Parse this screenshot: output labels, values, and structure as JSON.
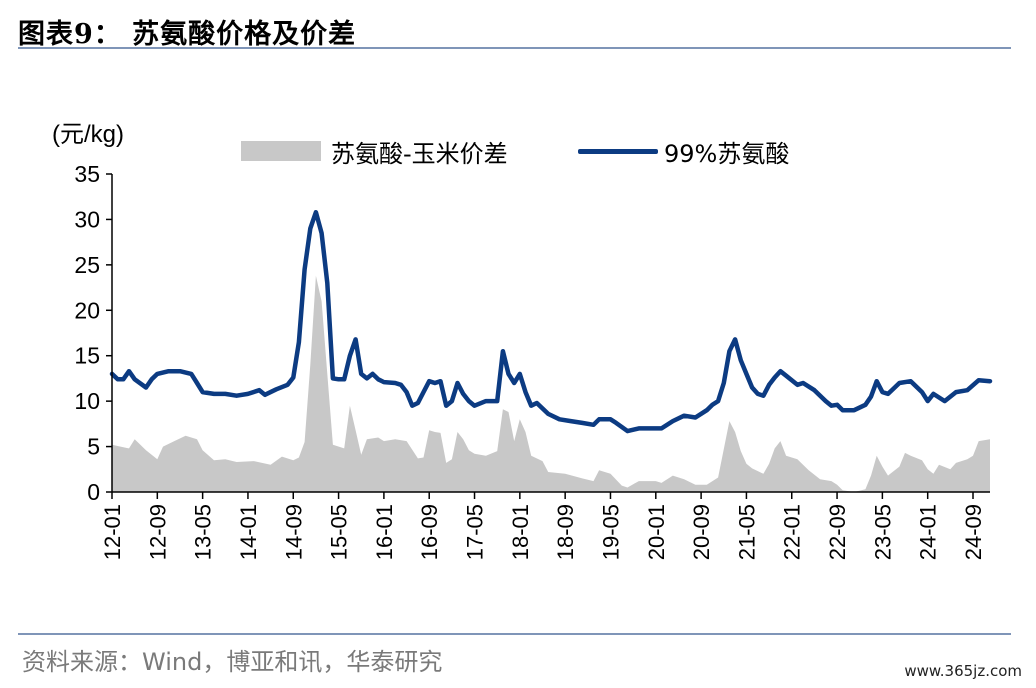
{
  "title": "图表9： 苏氨酸价格及价差",
  "source": "资料来源：Wind，博亚和讯，华泰研究",
  "watermark": "www.365jz.com",
  "colors": {
    "price_line": "#0c3b82",
    "spread_area": "#c8c8c8",
    "rule": "#7f95b8"
  },
  "chart_data": {
    "type": "area",
    "ylabel": "(元/kg)",
    "ylim": [
      0,
      35
    ],
    "yticks": [
      "0",
      "5",
      "10",
      "15",
      "20",
      "25",
      "30",
      "35"
    ],
    "x_tick_labels": [
      "12-01",
      "12-09",
      "13-05",
      "14-01",
      "14-09",
      "15-05",
      "16-01",
      "16-09",
      "17-05",
      "18-01",
      "18-09",
      "19-05",
      "20-01",
      "20-09",
      "21-05",
      "22-01",
      "22-09",
      "23-05",
      "24-01",
      "24-09"
    ],
    "x_start": "2012-01",
    "x_end": "2024-12",
    "legend_position": "top",
    "series": [
      {
        "name": "苏氨酸-玉米价差",
        "type": "area",
        "points": [
          [
            "2012-01",
            5.2
          ],
          [
            "2012-04",
            4.8
          ],
          [
            "2012-05",
            5.8
          ],
          [
            "2012-07",
            4.6
          ],
          [
            "2012-09",
            3.6
          ],
          [
            "2012-10",
            5.0
          ],
          [
            "2012-12",
            5.6
          ],
          [
            "2013-02",
            6.2
          ],
          [
            "2013-04",
            5.8
          ],
          [
            "2013-05",
            4.6
          ],
          [
            "2013-07",
            3.5
          ],
          [
            "2013-09",
            3.6
          ],
          [
            "2013-11",
            3.3
          ],
          [
            "2014-02",
            3.4
          ],
          [
            "2014-05",
            3.0
          ],
          [
            "2014-07",
            3.9
          ],
          [
            "2014-09",
            3.5
          ],
          [
            "2014-10",
            3.8
          ],
          [
            "2014-11",
            5.5
          ],
          [
            "2014-12",
            14.0
          ],
          [
            "2015-01",
            23.8
          ],
          [
            "2015-02",
            21.0
          ],
          [
            "2015-03",
            13.0
          ],
          [
            "2015-04",
            5.2
          ],
          [
            "2015-06",
            4.8
          ],
          [
            "2015-07",
            9.5
          ],
          [
            "2015-08",
            6.8
          ],
          [
            "2015-09",
            4.1
          ],
          [
            "2015-10",
            5.8
          ],
          [
            "2015-12",
            6.0
          ],
          [
            "2016-01",
            5.6
          ],
          [
            "2016-03",
            5.8
          ],
          [
            "2016-05",
            5.6
          ],
          [
            "2016-07",
            3.7
          ],
          [
            "2016-08",
            3.8
          ],
          [
            "2016-09",
            6.8
          ],
          [
            "2016-10",
            6.6
          ],
          [
            "2016-11",
            6.5
          ],
          [
            "2016-12",
            3.2
          ],
          [
            "2017-01",
            3.6
          ],
          [
            "2017-02",
            6.6
          ],
          [
            "2017-03",
            5.8
          ],
          [
            "2017-04",
            4.6
          ],
          [
            "2017-05",
            4.2
          ],
          [
            "2017-07",
            4.0
          ],
          [
            "2017-09",
            4.5
          ],
          [
            "2017-10",
            9.1
          ],
          [
            "2017-11",
            8.8
          ],
          [
            "2017-12",
            5.6
          ],
          [
            "2018-01",
            8.0
          ],
          [
            "2018-02",
            6.6
          ],
          [
            "2018-03",
            4.0
          ],
          [
            "2018-05",
            3.4
          ],
          [
            "2018-06",
            2.2
          ],
          [
            "2018-09",
            2.0
          ],
          [
            "2018-12",
            1.5
          ],
          [
            "2019-02",
            1.2
          ],
          [
            "2019-03",
            2.4
          ],
          [
            "2019-05",
            2.0
          ],
          [
            "2019-07",
            0.7
          ],
          [
            "2019-08",
            0.5
          ],
          [
            "2019-10",
            1.2
          ],
          [
            "2020-01",
            1.2
          ],
          [
            "2020-02",
            1.0
          ],
          [
            "2020-04",
            1.8
          ],
          [
            "2020-06",
            1.4
          ],
          [
            "2020-08",
            0.8
          ],
          [
            "2020-10",
            0.8
          ],
          [
            "2020-12",
            1.6
          ],
          [
            "2021-02",
            7.8
          ],
          [
            "2021-03",
            6.6
          ],
          [
            "2021-04",
            4.5
          ],
          [
            "2021-05",
            3.1
          ],
          [
            "2021-06",
            2.6
          ],
          [
            "2021-08",
            2.0
          ],
          [
            "2021-09",
            3.1
          ],
          [
            "2021-10",
            4.8
          ],
          [
            "2021-11",
            5.6
          ],
          [
            "2021-12",
            4.0
          ],
          [
            "2022-02",
            3.6
          ],
          [
            "2022-04",
            2.4
          ],
          [
            "2022-06",
            1.4
          ],
          [
            "2022-08",
            1.2
          ],
          [
            "2022-09",
            0.8
          ],
          [
            "2022-10",
            0.2
          ],
          [
            "2022-12",
            0.0
          ],
          [
            "2023-02",
            0.3
          ],
          [
            "2023-03",
            1.8
          ],
          [
            "2023-04",
            4.0
          ],
          [
            "2023-05",
            2.8
          ],
          [
            "2023-06",
            1.8
          ],
          [
            "2023-08",
            2.8
          ],
          [
            "2023-09",
            4.3
          ],
          [
            "2023-10",
            4.0
          ],
          [
            "2023-12",
            3.5
          ],
          [
            "2024-01",
            2.5
          ],
          [
            "2024-02",
            2.0
          ],
          [
            "2024-03",
            3.0
          ],
          [
            "2024-05",
            2.5
          ],
          [
            "2024-06",
            3.2
          ],
          [
            "2024-08",
            3.6
          ],
          [
            "2024-09",
            4.0
          ],
          [
            "2024-10",
            5.6
          ],
          [
            "2024-12",
            5.8
          ]
        ]
      },
      {
        "name": "99%苏氨酸",
        "type": "line",
        "points": [
          [
            "2012-01",
            13.0
          ],
          [
            "2012-02",
            12.4
          ],
          [
            "2012-03",
            12.4
          ],
          [
            "2012-04",
            13.3
          ],
          [
            "2012-05",
            12.4
          ],
          [
            "2012-07",
            11.5
          ],
          [
            "2012-08",
            12.4
          ],
          [
            "2012-09",
            13.0
          ],
          [
            "2012-11",
            13.3
          ],
          [
            "2013-01",
            13.3
          ],
          [
            "2013-03",
            13.0
          ],
          [
            "2013-04",
            12.0
          ],
          [
            "2013-05",
            11.0
          ],
          [
            "2013-07",
            10.8
          ],
          [
            "2013-09",
            10.8
          ],
          [
            "2013-11",
            10.6
          ],
          [
            "2014-01",
            10.8
          ],
          [
            "2014-03",
            11.2
          ],
          [
            "2014-04",
            10.7
          ],
          [
            "2014-06",
            11.3
          ],
          [
            "2014-08",
            11.8
          ],
          [
            "2014-09",
            12.6
          ],
          [
            "2014-10",
            16.5
          ],
          [
            "2014-11",
            24.5
          ],
          [
            "2014-12",
            29.0
          ],
          [
            "2015-01",
            30.8
          ],
          [
            "2015-02",
            28.5
          ],
          [
            "2015-03",
            23.0
          ],
          [
            "2015-04",
            12.5
          ],
          [
            "2015-05",
            12.4
          ],
          [
            "2015-06",
            12.4
          ],
          [
            "2015-07",
            15.0
          ],
          [
            "2015-08",
            16.8
          ],
          [
            "2015-09",
            13.0
          ],
          [
            "2015-10",
            12.5
          ],
          [
            "2015-11",
            13.0
          ],
          [
            "2015-12",
            12.4
          ],
          [
            "2016-01",
            12.1
          ],
          [
            "2016-03",
            12.0
          ],
          [
            "2016-04",
            11.8
          ],
          [
            "2016-05",
            11.0
          ],
          [
            "2016-06",
            9.5
          ],
          [
            "2016-07",
            9.8
          ],
          [
            "2016-08",
            11.0
          ],
          [
            "2016-09",
            12.2
          ],
          [
            "2016-10",
            12.0
          ],
          [
            "2016-11",
            12.2
          ],
          [
            "2016-12",
            9.5
          ],
          [
            "2017-01",
            10.0
          ],
          [
            "2017-02",
            12.0
          ],
          [
            "2017-03",
            10.8
          ],
          [
            "2017-04",
            10.0
          ],
          [
            "2017-05",
            9.5
          ],
          [
            "2017-07",
            10.0
          ],
          [
            "2017-09",
            10.0
          ],
          [
            "2017-10",
            15.5
          ],
          [
            "2017-11",
            13.0
          ],
          [
            "2017-12",
            12.0
          ],
          [
            "2018-01",
            13.0
          ],
          [
            "2018-02",
            11.0
          ],
          [
            "2018-03",
            9.5
          ],
          [
            "2018-04",
            9.8
          ],
          [
            "2018-06",
            8.6
          ],
          [
            "2018-08",
            8.0
          ],
          [
            "2018-10",
            7.8
          ],
          [
            "2018-12",
            7.6
          ],
          [
            "2019-02",
            7.4
          ],
          [
            "2019-03",
            8.0
          ],
          [
            "2019-05",
            8.0
          ],
          [
            "2019-06",
            7.6
          ],
          [
            "2019-08",
            6.7
          ],
          [
            "2019-10",
            7.0
          ],
          [
            "2020-01",
            7.0
          ],
          [
            "2020-02",
            7.0
          ],
          [
            "2020-04",
            7.8
          ],
          [
            "2020-06",
            8.4
          ],
          [
            "2020-08",
            8.2
          ],
          [
            "2020-10",
            9.0
          ],
          [
            "2020-11",
            9.6
          ],
          [
            "2020-12",
            10.0
          ],
          [
            "2021-01",
            12.0
          ],
          [
            "2021-02",
            15.5
          ],
          [
            "2021-03",
            16.8
          ],
          [
            "2021-04",
            14.5
          ],
          [
            "2021-05",
            13.0
          ],
          [
            "2021-06",
            11.5
          ],
          [
            "2021-07",
            10.8
          ],
          [
            "2021-08",
            10.6
          ],
          [
            "2021-09",
            11.8
          ],
          [
            "2021-10",
            12.6
          ],
          [
            "2021-11",
            13.3
          ],
          [
            "2021-12",
            12.8
          ],
          [
            "2022-02",
            11.8
          ],
          [
            "2022-03",
            12.0
          ],
          [
            "2022-05",
            11.2
          ],
          [
            "2022-07",
            10.0
          ],
          [
            "2022-08",
            9.5
          ],
          [
            "2022-09",
            9.6
          ],
          [
            "2022-10",
            9.0
          ],
          [
            "2022-12",
            9.0
          ],
          [
            "2023-02",
            9.6
          ],
          [
            "2023-03",
            10.5
          ],
          [
            "2023-04",
            12.2
          ],
          [
            "2023-05",
            11.0
          ],
          [
            "2023-06",
            10.8
          ],
          [
            "2023-08",
            12.0
          ],
          [
            "2023-10",
            12.2
          ],
          [
            "2023-12",
            11.0
          ],
          [
            "2024-01",
            10.0
          ],
          [
            "2024-02",
            10.8
          ],
          [
            "2024-04",
            10.0
          ],
          [
            "2024-06",
            11.0
          ],
          [
            "2024-08",
            11.2
          ],
          [
            "2024-10",
            12.3
          ],
          [
            "2024-12",
            12.2
          ]
        ]
      }
    ]
  }
}
